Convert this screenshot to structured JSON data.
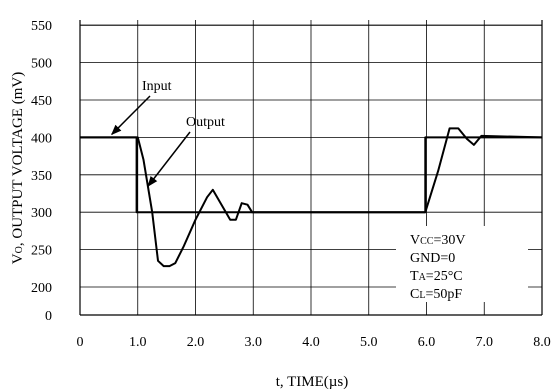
{
  "chart_data": {
    "type": "line",
    "title": "",
    "xlabel": "t, TIME(µs)",
    "ylabel_prefix": "V",
    "ylabel_sub": "O",
    "ylabel_rest": ", OUTPUT VOLTAGE (mV)",
    "xlim": [
      0,
      8
    ],
    "ylim": [
      0,
      550
    ],
    "x_ticks": [
      {
        "value": 0,
        "label": "0"
      },
      {
        "value": 1,
        "label": "1.0"
      },
      {
        "value": 2,
        "label": "2.0"
      },
      {
        "value": 3,
        "label": "3.0"
      },
      {
        "value": 4,
        "label": "4.0"
      },
      {
        "value": 5,
        "label": "5.0"
      },
      {
        "value": 6,
        "label": "6.0"
      },
      {
        "value": 7,
        "label": "7.0"
      },
      {
        "value": 8,
        "label": "8.0"
      }
    ],
    "y_ticks": [
      {
        "value": 0,
        "label": "0"
      },
      {
        "value": 200,
        "label": "200"
      },
      {
        "value": 250,
        "label": "250"
      },
      {
        "value": 300,
        "label": "300"
      },
      {
        "value": 350,
        "label": "350"
      },
      {
        "value": 400,
        "label": "400"
      },
      {
        "value": 450,
        "label": "450"
      },
      {
        "value": 500,
        "label": "500"
      },
      {
        "value": 550,
        "label": "550"
      }
    ],
    "grid": true,
    "series": [
      {
        "name": "Input",
        "x": [
          0,
          0.98,
          0.98,
          5.98,
          5.98,
          8
        ],
        "y": [
          400,
          400,
          300,
          300,
          400,
          400
        ]
      },
      {
        "name": "Output",
        "x": [
          0,
          1.0,
          1.1,
          1.25,
          1.35,
          1.45,
          1.55,
          1.65,
          1.8,
          2.0,
          2.2,
          2.3,
          2.45,
          2.6,
          2.7,
          2.8,
          2.9,
          2.98,
          2.98,
          5.98,
          6.2,
          6.4,
          6.55,
          6.7,
          6.82,
          6.95,
          8
        ],
        "y": [
          400,
          400,
          370,
          300,
          235,
          228,
          228,
          232,
          255,
          290,
          320,
          330,
          310,
          290,
          290,
          312,
          310,
          300,
          300,
          300,
          355,
          412,
          412,
          398,
          390,
          402,
          400
        ]
      }
    ],
    "annotations": [
      {
        "label": "Input",
        "series": "Input"
      },
      {
        "label": "Output",
        "series": "Output"
      }
    ],
    "conditions": {
      "vcc": {
        "main": "V",
        "sub": "CC",
        "rest": "=30V"
      },
      "gnd": {
        "text": "GND=0"
      },
      "ta": {
        "main": "T",
        "sub": "A",
        "rest": "=25°C"
      },
      "cl": {
        "main": "C",
        "sub": "L",
        "rest": "=50pF"
      }
    }
  }
}
